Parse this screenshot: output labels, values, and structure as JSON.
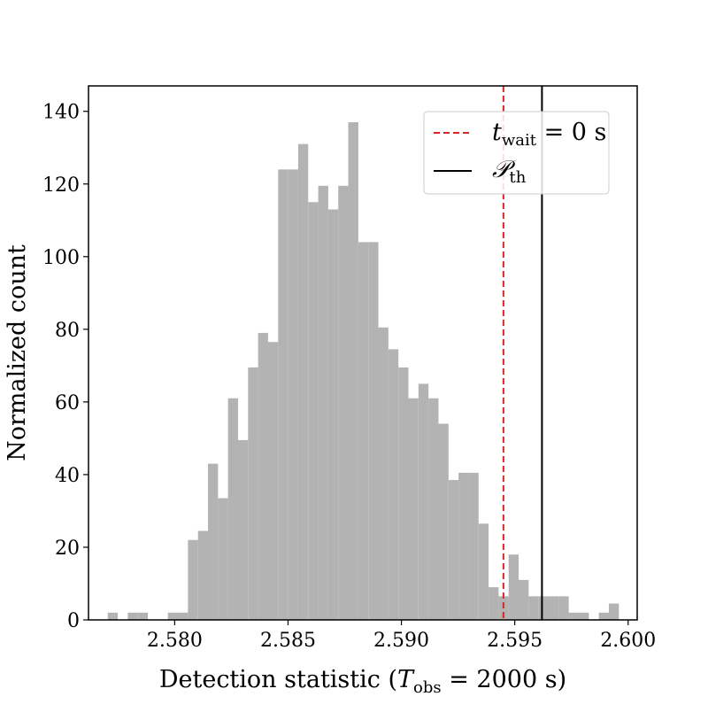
{
  "chart_data": {
    "type": "bar",
    "title": "",
    "xlabel": "Detection statistic (T_obs = 2000 s)",
    "xlabel_parts": {
      "prefix": "Detection statistic (",
      "symbol": "T",
      "subscript": "obs",
      "suffix": " = 2000 s)"
    },
    "ylabel": "Normalized count",
    "xlim": [
      2.5762,
      2.6004
    ],
    "ylim": [
      0,
      147
    ],
    "x_ticks": [
      2.58,
      2.585,
      2.59,
      2.595,
      2.6
    ],
    "x_tick_labels": [
      "2.580",
      "2.585",
      "2.590",
      "2.595",
      "2.600"
    ],
    "y_ticks": [
      0,
      20,
      40,
      60,
      80,
      100,
      120,
      140
    ],
    "y_tick_labels": [
      "0",
      "20",
      "40",
      "60",
      "80",
      "100",
      "120",
      "140"
    ],
    "grid": false,
    "bar_color": "#b3b3b3",
    "bin_start": 2.57705,
    "bin_width": 0.000442,
    "values": [
      2,
      0,
      2,
      2,
      0,
      0,
      2,
      2,
      22,
      24.5,
      43,
      33.5,
      61,
      49.5,
      69.5,
      79,
      76.5,
      124,
      124,
      131,
      115,
      119.5,
      113,
      119.5,
      137,
      104,
      104,
      80.5,
      74.5,
      69.5,
      61,
      65,
      61,
      54,
      38.5,
      40.5,
      40.5,
      26.5,
      9,
      6.5,
      18,
      11,
      6.5,
      6.5,
      6.5,
      6.5,
      2,
      2,
      0,
      2,
      4.5
    ],
    "vlines": [
      {
        "x": 2.5945,
        "color": "#d62728",
        "style": "dashed",
        "label_symbol": "t",
        "label_subscript": "wait",
        "label_suffix": " = 0 s"
      },
      {
        "x": 2.5962,
        "color": "#000000",
        "style": "solid",
        "label_symbol": "𝒫",
        "label_subscript": "th",
        "label_suffix": ""
      }
    ],
    "legend_position": "top-right"
  }
}
